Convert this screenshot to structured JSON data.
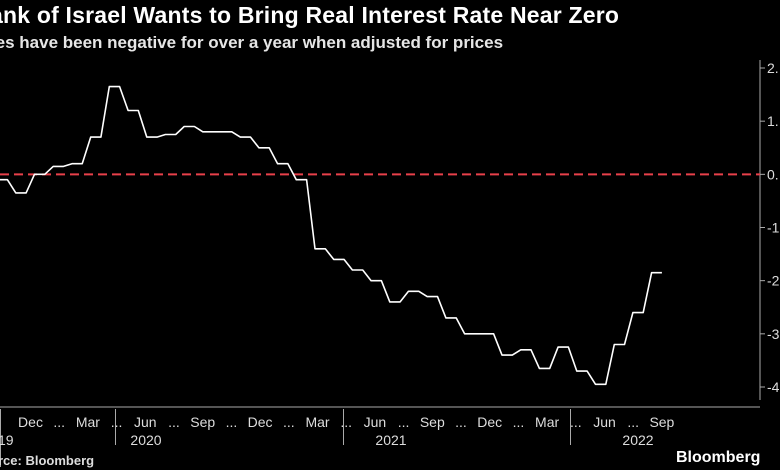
{
  "chart_data": {
    "type": "line",
    "title": "ank of Israel Wants to Bring Real Interest Rate Near Zero",
    "subtitle": "tes have been negative for over a year when adjusted for prices",
    "x_tick_labels": [
      "Dec",
      "...",
      "Mar",
      "...",
      "Jun",
      "...",
      "Sep",
      "...",
      "Dec",
      "...",
      "Mar",
      "...",
      "Jun",
      "...",
      "Sep",
      "...",
      "Dec",
      "...",
      "Mar",
      "...",
      "Jun",
      "...",
      "Sep"
    ],
    "year_labels": [
      "19",
      "2020",
      "2021",
      "2022"
    ],
    "y_tick_labels": [
      "2.",
      "1.",
      "0.",
      "-1",
      "-2",
      "-3",
      "-4"
    ],
    "ylim": [
      -4,
      2
    ],
    "reference_line": {
      "y": 0,
      "style": "dashed",
      "color": "#e8404a"
    },
    "series": [
      {
        "color": "#ffffff",
        "x": [
          "2019-11",
          "2019-12",
          "2020-01",
          "2020-02",
          "2020-03",
          "2020-04",
          "2020-05",
          "2020-06",
          "2020-07",
          "2020-08",
          "2020-09",
          "2020-10",
          "2020-11",
          "2020-12",
          "2021-01",
          "2021-02",
          "2021-03",
          "2021-04",
          "2021-05",
          "2021-06",
          "2021-07",
          "2021-08",
          "2021-09",
          "2021-10",
          "2021-11",
          "2021-12",
          "2022-01",
          "2022-02",
          "2022-03",
          "2022-04",
          "2022-05",
          "2022-06",
          "2022-07",
          "2022-08",
          "2022-09",
          "2022-10"
        ],
        "y": [
          -0.1,
          -0.35,
          0.0,
          0.15,
          0.2,
          0.7,
          1.65,
          1.2,
          0.7,
          0.75,
          0.9,
          0.8,
          0.8,
          0.7,
          0.5,
          0.2,
          -0.1,
          -1.4,
          -1.6,
          -1.8,
          -2.0,
          -2.4,
          -2.2,
          -2.3,
          -2.7,
          -3.0,
          -3.0,
          -3.4,
          -3.3,
          -3.65,
          -3.25,
          -3.7,
          -3.95,
          -3.2,
          -2.6,
          -1.85
        ]
      }
    ],
    "source_text": "rce: Bloomberg",
    "brand_text": "Bloomberg"
  }
}
